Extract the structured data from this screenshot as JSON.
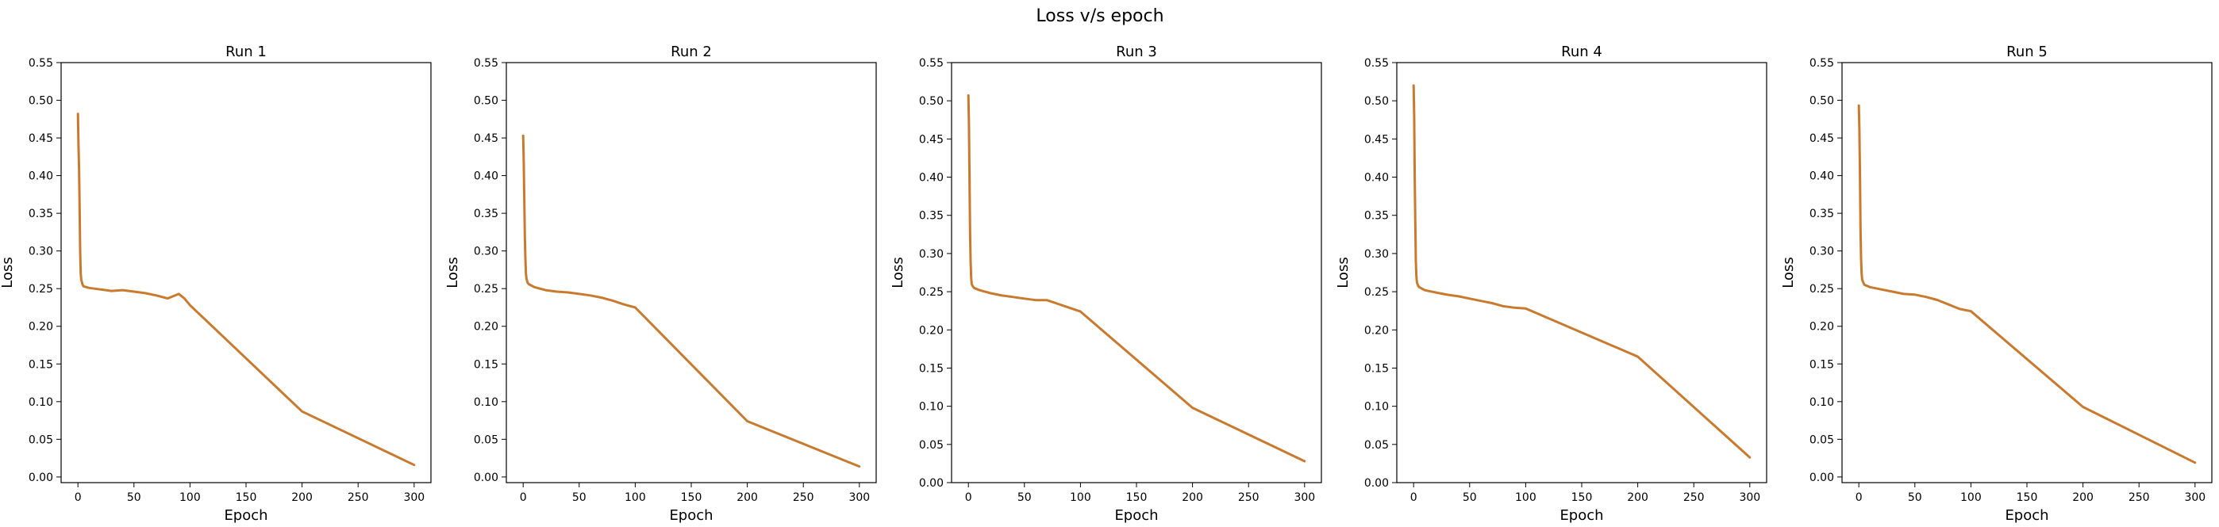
{
  "figure": {
    "title": "Loss v/s epoch"
  },
  "colors": {
    "line": "#c87a2f",
    "axis": "#000000",
    "background": "#ffffff"
  },
  "chart_data": [
    {
      "type": "line",
      "title": "Run 1",
      "xlabel": "Epoch",
      "ylabel": "Loss",
      "xlim": [
        -15,
        315
      ],
      "ylim": [
        -0.0075,
        0.55
      ],
      "xticks": [
        0,
        50,
        100,
        150,
        200,
        250,
        300
      ],
      "yticks": [
        0.0,
        0.05,
        0.1,
        0.15,
        0.2,
        0.25,
        0.3,
        0.35,
        0.4,
        0.45,
        0.5,
        0.55
      ],
      "grid": false,
      "series": [
        {
          "x": [
            0,
            0.5,
            1,
            1.5,
            2,
            2.5,
            3,
            4,
            5,
            10,
            20,
            30,
            40,
            50,
            60,
            70,
            80,
            90,
            95,
            100,
            200,
            300
          ],
          "y": [
            0.482,
            0.44,
            0.41,
            0.36,
            0.3,
            0.27,
            0.262,
            0.256,
            0.253,
            0.251,
            0.249,
            0.247,
            0.248,
            0.246,
            0.244,
            0.241,
            0.237,
            0.243,
            0.237,
            0.228,
            0.087,
            0.016
          ]
        }
      ]
    },
    {
      "type": "line",
      "title": "Run 2",
      "xlabel": "Epoch",
      "ylabel": "Loss",
      "xlim": [
        -15,
        315
      ],
      "ylim": [
        -0.0075,
        0.55
      ],
      "xticks": [
        0,
        50,
        100,
        150,
        200,
        250,
        300
      ],
      "yticks": [
        0.0,
        0.05,
        0.1,
        0.15,
        0.2,
        0.25,
        0.3,
        0.35,
        0.4,
        0.45,
        0.5,
        0.55
      ],
      "grid": false,
      "series": [
        {
          "x": [
            0,
            0.5,
            1,
            1.5,
            2,
            2.5,
            3,
            4,
            5,
            10,
            20,
            30,
            40,
            50,
            60,
            70,
            80,
            90,
            100,
            200,
            300
          ],
          "y": [
            0.453,
            0.42,
            0.37,
            0.32,
            0.29,
            0.27,
            0.263,
            0.258,
            0.256,
            0.252,
            0.248,
            0.246,
            0.245,
            0.243,
            0.241,
            0.238,
            0.234,
            0.229,
            0.225,
            0.074,
            0.014
          ]
        }
      ]
    },
    {
      "type": "line",
      "title": "Run 3",
      "xlabel": "Epoch",
      "ylabel": "Loss",
      "xlim": [
        -15,
        315
      ],
      "ylim": [
        0,
        0.55
      ],
      "xticks": [
        0,
        50,
        100,
        150,
        200,
        250,
        300
      ],
      "yticks": [
        0.0,
        0.05,
        0.1,
        0.15,
        0.2,
        0.25,
        0.3,
        0.35,
        0.4,
        0.45,
        0.5,
        0.55
      ],
      "grid": false,
      "series": [
        {
          "x": [
            0,
            0.5,
            1,
            1.5,
            2,
            2.5,
            3,
            4,
            5,
            10,
            20,
            30,
            40,
            50,
            60,
            70,
            80,
            90,
            100,
            200,
            300
          ],
          "y": [
            0.507,
            0.47,
            0.4,
            0.33,
            0.29,
            0.268,
            0.26,
            0.257,
            0.255,
            0.252,
            0.248,
            0.245,
            0.243,
            0.241,
            0.239,
            0.239,
            0.234,
            0.229,
            0.224,
            0.098,
            0.028
          ]
        }
      ]
    },
    {
      "type": "line",
      "title": "Run 4",
      "xlabel": "Epoch",
      "ylabel": "Loss",
      "xlim": [
        -15,
        315
      ],
      "ylim": [
        0,
        0.55
      ],
      "xticks": [
        0,
        50,
        100,
        150,
        200,
        250,
        300
      ],
      "yticks": [
        0.0,
        0.05,
        0.1,
        0.15,
        0.2,
        0.25,
        0.3,
        0.35,
        0.4,
        0.45,
        0.5,
        0.55
      ],
      "grid": false,
      "series": [
        {
          "x": [
            0,
            0.5,
            1,
            1.5,
            2,
            2.5,
            3,
            4,
            5,
            10,
            20,
            30,
            40,
            50,
            60,
            70,
            80,
            90,
            100,
            200,
            300
          ],
          "y": [
            0.52,
            0.48,
            0.4,
            0.34,
            0.29,
            0.27,
            0.262,
            0.258,
            0.256,
            0.252,
            0.249,
            0.246,
            0.244,
            0.241,
            0.238,
            0.235,
            0.231,
            0.229,
            0.228,
            0.165,
            0.033
          ]
        }
      ]
    },
    {
      "type": "line",
      "title": "Run 5",
      "xlabel": "Epoch",
      "ylabel": "Loss",
      "xlim": [
        -15,
        315
      ],
      "ylim": [
        -0.0075,
        0.55
      ],
      "xticks": [
        0,
        50,
        100,
        150,
        200,
        250,
        300
      ],
      "yticks": [
        0.0,
        0.05,
        0.1,
        0.15,
        0.2,
        0.25,
        0.3,
        0.35,
        0.4,
        0.45,
        0.5,
        0.55
      ],
      "grid": false,
      "series": [
        {
          "x": [
            0,
            0.5,
            1,
            1.5,
            2,
            2.5,
            3,
            4,
            5,
            10,
            20,
            30,
            40,
            50,
            60,
            70,
            80,
            90,
            100,
            200,
            300
          ],
          "y": [
            0.493,
            0.46,
            0.4,
            0.33,
            0.29,
            0.27,
            0.262,
            0.258,
            0.255,
            0.252,
            0.249,
            0.246,
            0.243,
            0.242,
            0.239,
            0.235,
            0.229,
            0.223,
            0.22,
            0.093,
            0.019
          ]
        }
      ]
    }
  ]
}
